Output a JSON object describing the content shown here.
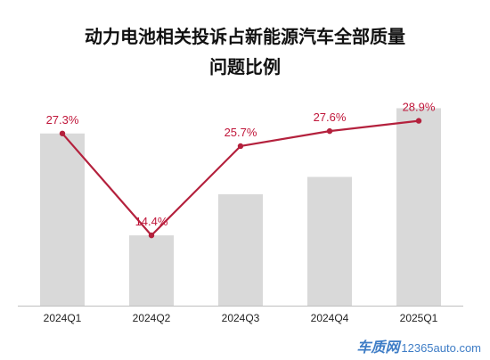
{
  "chart_data": {
    "type": "bar",
    "title_lines": [
      "动力电池相关投诉占新能源汽车全部质量",
      "问题比例"
    ],
    "categories": [
      "2024Q1",
      "2024Q2",
      "2024Q3",
      "2024Q4",
      "2025Q1"
    ],
    "bar_values": [
      27.3,
      14.4,
      19.6,
      21.8,
      30.5
    ],
    "line_values": [
      27.3,
      14.4,
      25.7,
      27.6,
      28.9
    ],
    "data_labels": [
      "27.3%",
      "14.4%",
      "25.7%",
      "27.6%",
      "28.9%"
    ],
    "ylim": [
      5.5,
      31.0
    ],
    "xlabel": "",
    "ylabel": "",
    "grid": false,
    "colors": {
      "bar": "#d9d9d9",
      "line": "#b4213d",
      "label": "#c0163a",
      "axis": "#bfbfbf"
    }
  },
  "watermark": {
    "logo_text": "车质网",
    "site": "12365auto.com"
  }
}
